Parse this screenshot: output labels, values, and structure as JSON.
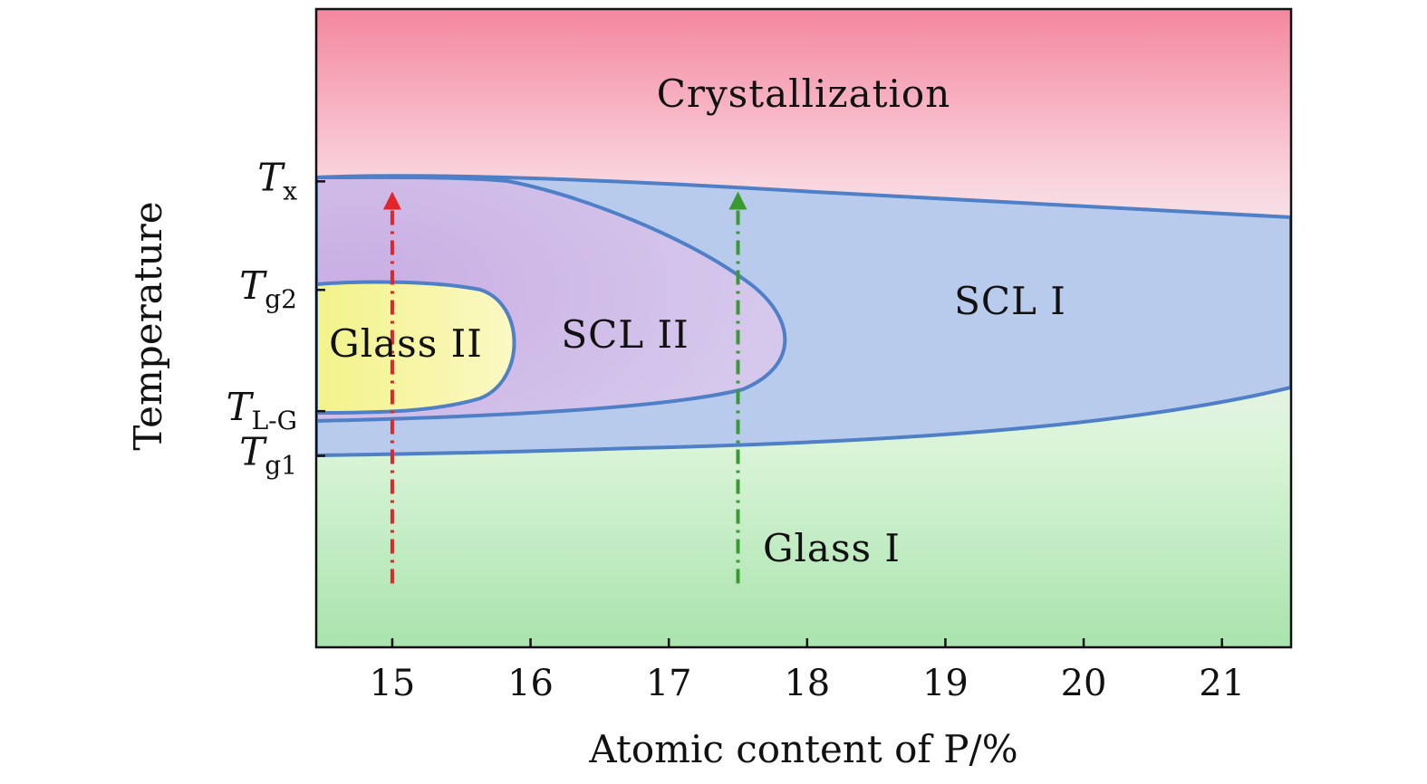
{
  "chart_data": {
    "type": "area",
    "xlabel": "Atomic content of P/%",
    "ylabel": "Temperature",
    "xlim": [
      14.45,
      21.5
    ],
    "xticks": [
      "15",
      "16",
      "17",
      "18",
      "19",
      "20",
      "21"
    ],
    "ylevels": [
      {
        "key": "Tx",
        "main": "T",
        "sub": "x",
        "level": 0.73
      },
      {
        "key": "Tg2",
        "main": "T",
        "sub": "g2",
        "level": 0.56
      },
      {
        "key": "TLG",
        "main": "T",
        "sub": "L-G",
        "level": 0.37
      },
      {
        "key": "Tg1",
        "main": "T",
        "sub": "g1",
        "level": 0.3
      }
    ],
    "regions": [
      {
        "key": "crystallization",
        "label": "Crystallization",
        "color": "#f4879f"
      },
      {
        "key": "scl1",
        "label": "SCL I",
        "color": "#b9cbec"
      },
      {
        "key": "scl2",
        "label": "SCL II",
        "color": "#d6c8ec"
      },
      {
        "key": "glass2",
        "label": "Glass II",
        "color": "#f2f38a"
      },
      {
        "key": "glass1",
        "label": "Glass I",
        "color": "#a9e3ad"
      }
    ],
    "paths": [
      {
        "key": "red",
        "x": 15.0,
        "color": "#e0262a",
        "style": "dash-dot",
        "arrow": "up"
      },
      {
        "key": "green",
        "x": 17.5,
        "color": "#3a9a32",
        "style": "dash-dot",
        "arrow": "up"
      }
    ],
    "boundary_color": "#4f7fc6",
    "legend": "none",
    "grid": false
  }
}
